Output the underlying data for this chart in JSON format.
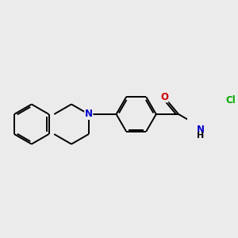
{
  "bg_color": "#ebebeb",
  "bond_color": "#000000",
  "bond_width": 1.4,
  "atom_colors": {
    "N": "#0000cc",
    "O": "#cc0000",
    "Cl": "#00aa00"
  },
  "font_size": 8.5,
  "fig_size": [
    3.0,
    3.0
  ],
  "dpi": 100
}
